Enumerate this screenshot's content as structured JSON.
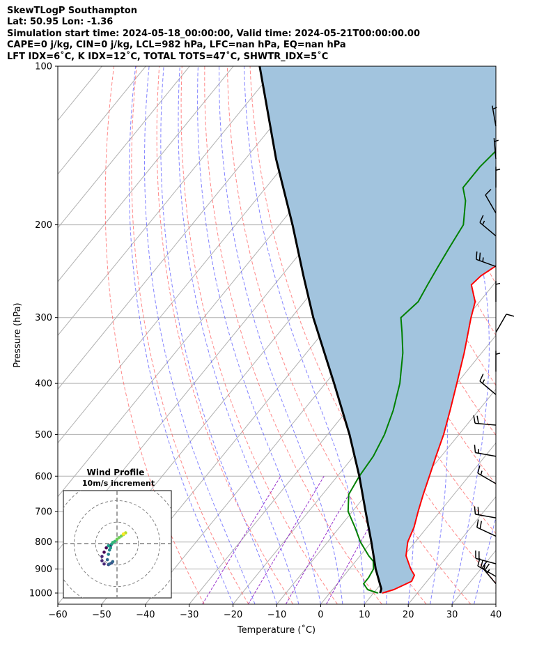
{
  "header": {
    "lines": [
      "SkewTLogP Southampton",
      "Lat: 50.95   Lon: -1.36",
      "Simulation start time: 2024-05-18_00:00:00, Valid time: 2024-05-21T00:00:00.00",
      "CAPE=0 j/kg, CIN=0 j/kg, LCL=982 hPa, LFC=nan hPa, EQ=nan hPa",
      "LFT IDX=6˚C, K IDX=12˚C, TOTAL TOTS=47˚C, SHWTR_IDX=5˚C"
    ]
  },
  "chart_data": [
    {
      "type": "line",
      "subtype": "skew-t log-p",
      "xlabel": "Temperature (˚C)",
      "ylabel": "Pressure (hPa)",
      "xlim": [
        -60,
        40
      ],
      "ylim": [
        1050,
        100
      ],
      "y_scale": "log",
      "x_ticks": [
        -60,
        -50,
        -40,
        -30,
        -20,
        -10,
        0,
        10,
        20,
        30,
        40
      ],
      "y_ticks": [
        100,
        200,
        300,
        400,
        500,
        600,
        700,
        800,
        900,
        1000
      ],
      "grid": true,
      "colors": {
        "temperature": "#ff0000",
        "dewpoint": "#008000",
        "parcel": "#000000",
        "cape_fill": "#a2c4de",
        "dry_adiabats": "#ff6060",
        "moist_adiabats": "#5a5aff",
        "mixing_ratio": "#9933cc",
        "isotherms": "#b0b0b0"
      },
      "series": [
        {
          "key": "temperature",
          "points": [
            [
              1000,
              12
            ],
            [
              985,
              14
            ],
            [
              950,
              16.5
            ],
            [
              925,
              16
            ],
            [
              900,
              14
            ],
            [
              850,
              10.5
            ],
            [
              800,
              8.3
            ],
            [
              750,
              7
            ],
            [
              700,
              5
            ],
            [
              650,
              3
            ],
            [
              600,
              1
            ],
            [
              550,
              -1.2
            ],
            [
              500,
              -3.5
            ],
            [
              450,
              -6.5
            ],
            [
              400,
              -10
            ],
            [
              350,
              -14
            ],
            [
              300,
              -19
            ],
            [
              280,
              -21
            ],
            [
              260,
              -25
            ],
            [
              250,
              -24.5
            ],
            [
              240,
              -23
            ],
            [
              220,
              -20
            ],
            [
              200,
              -17.5
            ],
            [
              180,
              -15
            ],
            [
              170,
              -14
            ],
            [
              150,
              -12
            ],
            [
              130,
              -11
            ],
            [
              115,
              -10
            ],
            [
              100,
              -9
            ]
          ]
        },
        {
          "key": "dewpoint",
          "points": [
            [
              1000,
              11
            ],
            [
              985,
              8
            ],
            [
              960,
              6
            ],
            [
              935,
              6
            ],
            [
              900,
              5.5
            ],
            [
              870,
              4
            ],
            [
              850,
              2
            ],
            [
              800,
              -2.5
            ],
            [
              750,
              -6.5
            ],
            [
              700,
              -11
            ],
            [
              650,
              -14
            ],
            [
              600,
              -15
            ],
            [
              550,
              -15.5
            ],
            [
              500,
              -17
            ],
            [
              450,
              -19.5
            ],
            [
              400,
              -23
            ],
            [
              350,
              -28
            ],
            [
              320,
              -32
            ],
            [
              300,
              -35
            ],
            [
              280,
              -34
            ],
            [
              260,
              -35
            ],
            [
              240,
              -36
            ],
            [
              220,
              -37
            ],
            [
              200,
              -38
            ],
            [
              180,
              -42
            ],
            [
              170,
              -45
            ],
            [
              155,
              -45
            ],
            [
              140,
              -44
            ],
            [
              120,
              -40
            ],
            [
              100,
              -36
            ]
          ]
        },
        {
          "key": "parcel",
          "points": [
            [
              1000,
              11.5
            ],
            [
              982,
              11
            ],
            [
              900,
              6
            ],
            [
              800,
              0
            ],
            [
              700,
              -7
            ],
            [
              600,
              -15
            ],
            [
              500,
              -25
            ],
            [
              400,
              -38
            ],
            [
              300,
              -55
            ],
            [
              250,
              -65
            ],
            [
              200,
              -77
            ],
            [
              150,
              -93
            ],
            [
              100,
              -114
            ]
          ]
        }
      ],
      "wind_barbs": [
        {
          "p": 130,
          "dir": 350,
          "kt": 5
        },
        {
          "p": 150,
          "dir": 355,
          "kt": 5
        },
        {
          "p": 170,
          "dir": 0,
          "kt": 5
        },
        {
          "p": 190,
          "dir": 330,
          "kt": 10
        },
        {
          "p": 210,
          "dir": 310,
          "kt": 15
        },
        {
          "p": 240,
          "dir": 290,
          "kt": 25
        },
        {
          "p": 280,
          "dir": 0,
          "kt": 5
        },
        {
          "p": 320,
          "dir": 30,
          "kt": 10
        },
        {
          "p": 380,
          "dir": 0,
          "kt": 5
        },
        {
          "p": 420,
          "dir": 310,
          "kt": 15
        },
        {
          "p": 480,
          "dir": 275,
          "kt": 20
        },
        {
          "p": 550,
          "dir": 280,
          "kt": 15
        },
        {
          "p": 620,
          "dir": 300,
          "kt": 15
        },
        {
          "p": 720,
          "dir": 280,
          "kt": 20
        },
        {
          "p": 780,
          "dir": 295,
          "kt": 20
        },
        {
          "p": 880,
          "dir": 285,
          "kt": 20
        },
        {
          "p": 930,
          "dir": 300,
          "kt": 25
        },
        {
          "p": 960,
          "dir": 320,
          "kt": 25
        }
      ]
    },
    {
      "type": "scatter",
      "subtype": "hodograph",
      "title": "Wind Profile",
      "subtitle": "10m/s increment",
      "ring_increment": 10,
      "rings": [
        10,
        20,
        30
      ],
      "range": [
        -25,
        25
      ],
      "colormap": "viridis",
      "points": [
        [
          -3,
          -1
        ],
        [
          -5,
          -2
        ],
        [
          -6,
          -4
        ],
        [
          -7,
          -6
        ],
        [
          -7,
          -8
        ],
        [
          -6,
          -9.5
        ],
        [
          -4,
          -9.8
        ],
        [
          -2.5,
          -9
        ],
        [
          -2,
          -8.4
        ],
        [
          -3.5,
          -9.5
        ],
        [
          -4.5,
          -7.5
        ],
        [
          -4,
          -5
        ],
        [
          -3.5,
          -3
        ],
        [
          -3,
          -2
        ],
        [
          -4,
          -1
        ],
        [
          -2.5,
          -0.3
        ],
        [
          -2,
          0.5
        ],
        [
          -1,
          1
        ],
        [
          0,
          2
        ],
        [
          1,
          2.8
        ],
        [
          2,
          3.5
        ],
        [
          3,
          4.2
        ],
        [
          4,
          5
        ],
        [
          3,
          4.5
        ]
      ]
    }
  ]
}
